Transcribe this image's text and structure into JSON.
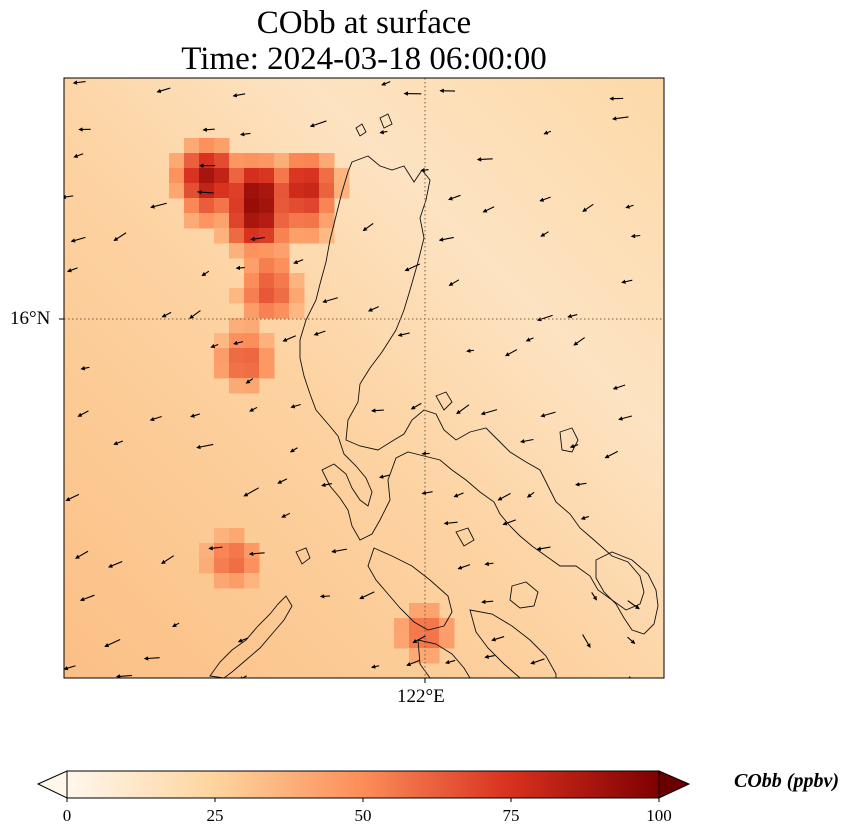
{
  "map": {
    "title_line1": "CObb at surface",
    "title_line2": "Time: 2024-03-18 06:00:00",
    "lat_tick_label": "16°N",
    "lon_tick_label": "122°E",
    "variable": "CObb",
    "field_units": "ppbv",
    "colormap": "OrRd",
    "colormap_stops": [
      "#fff7ec",
      "#fdd49e",
      "#fc8d59",
      "#d7301f",
      "#7f0000"
    ],
    "plume_hotspots": [
      {
        "lon": 120.6,
        "lat": 16.95,
        "value": 100
      },
      {
        "lon": 120.2,
        "lat": 17.15,
        "value": 85
      },
      {
        "lon": 121.0,
        "lat": 17.05,
        "value": 80
      },
      {
        "lon": 120.7,
        "lat": 16.3,
        "value": 65
      },
      {
        "lon": 120.5,
        "lat": 15.7,
        "value": 60
      },
      {
        "lon": 120.4,
        "lat": 14.0,
        "value": 55
      },
      {
        "lon": 122.0,
        "lat": 13.4,
        "value": 55
      }
    ],
    "background_value_range": [
      20,
      40
    ]
  },
  "colorbar": {
    "label": "CObb (ppbv)",
    "min": 0,
    "max": 100,
    "ticks": [
      "0",
      "25",
      "50",
      "75",
      "100"
    ],
    "extend": "both"
  }
}
